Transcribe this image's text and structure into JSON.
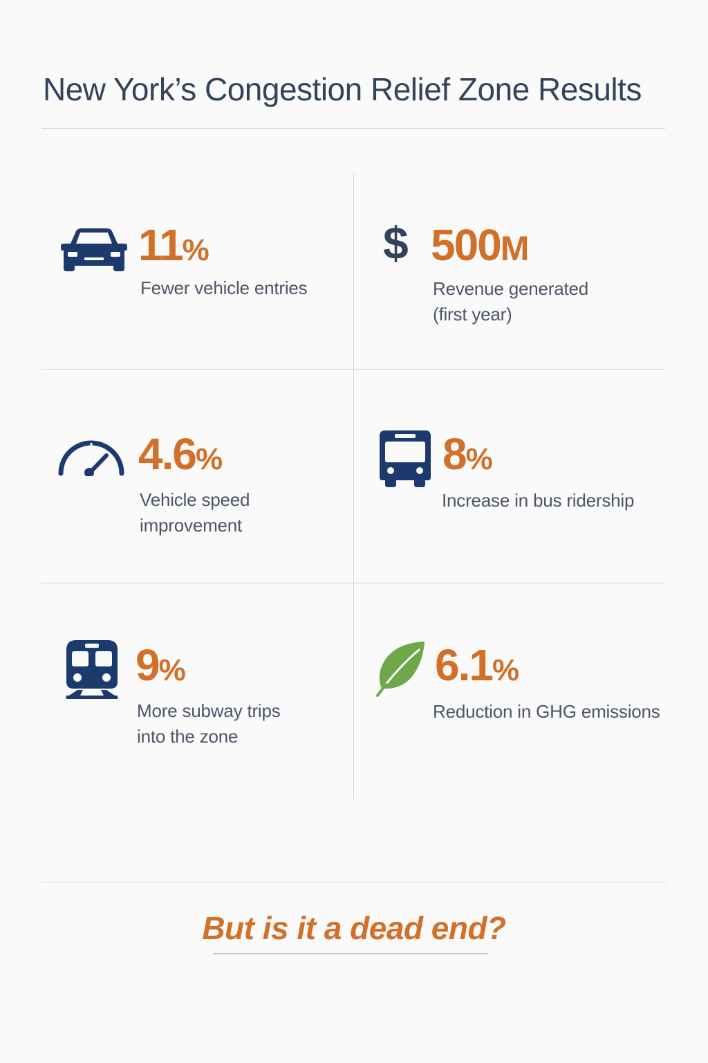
{
  "title": "New York’s Congestion Relief Zone Results",
  "colors": {
    "accent": "#d26f28",
    "navy": "#1d3a6e",
    "leaf": "#6ea84a",
    "text": "#4c5566"
  },
  "stats": [
    {
      "icon": "car-icon",
      "value": "11",
      "unit": "%",
      "label": "Fewer vehicle entries"
    },
    {
      "icon": "dollar-icon",
      "prefix": "$",
      "value": "500",
      "unit": "M",
      "label": "Revenue generated\n(first year)"
    },
    {
      "icon": "speedometer-icon",
      "value": "4.6",
      "unit": "%",
      "label": "Vehicle speed\nimprovement"
    },
    {
      "icon": "bus-icon",
      "value": "8",
      "unit": "%",
      "label": "Increase in bus ridership"
    },
    {
      "icon": "subway-train-icon",
      "value": "9",
      "unit": "%",
      "label": "More subway trips\ninto the zone"
    },
    {
      "icon": "leaf-icon",
      "value": "6.1",
      "unit": "%",
      "label": "Reduction in GHG emissions"
    }
  ],
  "closing_question": "But is it a dead end?"
}
